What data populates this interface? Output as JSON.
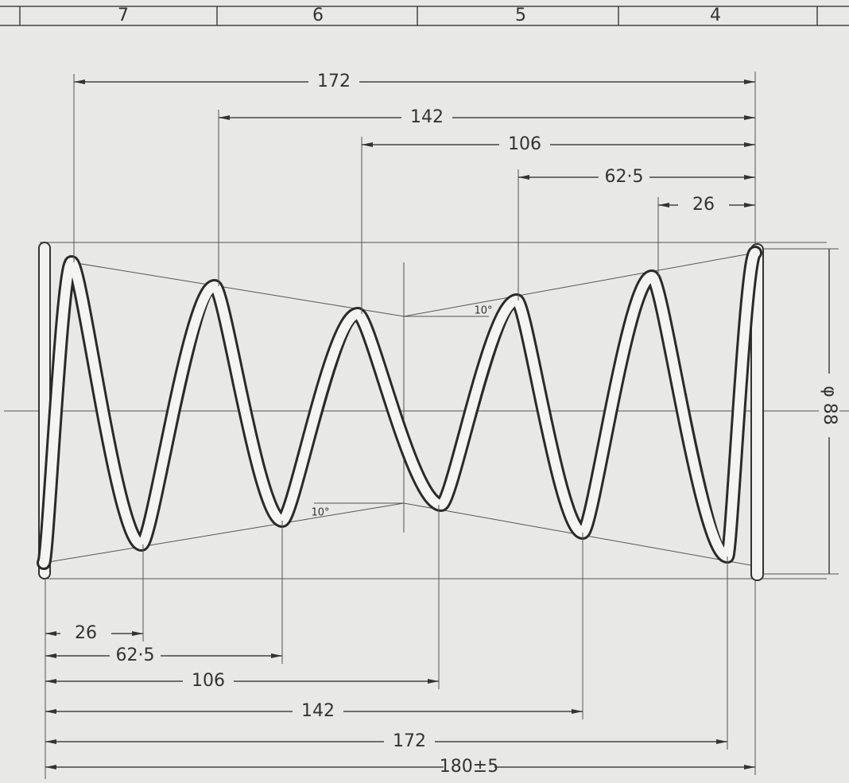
{
  "zone_strip": [
    "7",
    "6",
    "5",
    "4"
  ],
  "top_dimensions": [
    "172",
    "142",
    "106",
    "62·5",
    "26"
  ],
  "bottom_dimensions": [
    "26",
    "62·5",
    "106",
    "142",
    "172",
    "180±5"
  ],
  "angles": [
    "10°",
    "10°"
  ],
  "diameter": "φ 88"
}
